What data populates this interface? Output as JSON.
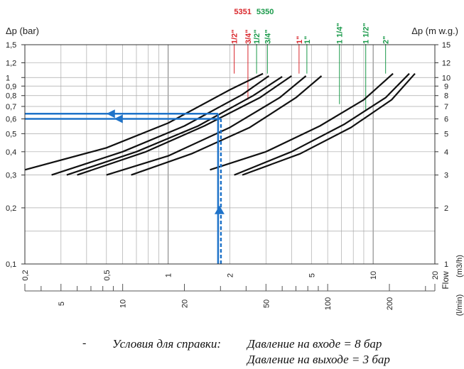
{
  "chart_data": {
    "type": "line",
    "x_scale": "log",
    "y_scale": "log",
    "xlim": [
      0.2,
      20
    ],
    "ylim": [
      0.1,
      1.5
    ],
    "grid": true,
    "ylabel_left": "Δp (bar)",
    "ylabel_right": "Δp (m w.g.)",
    "xlabel_unit_top": "(m3/h)",
    "xlabel_unit_bottom": "(l/min)",
    "flow_label": "Flow",
    "left_ticks": [
      "0,1",
      "0,2",
      "0,3",
      "0,4",
      "0,5",
      "0,6",
      "0,7",
      "0,8",
      "0,9",
      "1",
      "1,2",
      "1,5"
    ],
    "left_tick_values": [
      0.1,
      0.2,
      0.3,
      0.4,
      0.5,
      0.6,
      0.7,
      0.8,
      0.9,
      1.0,
      1.2,
      1.5
    ],
    "right_ticks": [
      "1",
      "2",
      "3",
      "4",
      "5",
      "6",
      "7",
      "8",
      "9",
      "10",
      "12",
      "15"
    ],
    "right_tick_values": [
      0.1,
      0.2,
      0.3,
      0.4,
      0.5,
      0.6,
      0.7,
      0.8,
      0.9,
      1.0,
      1.2,
      1.5
    ],
    "x_ticks_m3h": [
      "0,2",
      "0,5",
      "1",
      "2",
      "5",
      "10",
      "20"
    ],
    "x_tick_values_m3h": [
      0.2,
      0.5,
      1,
      2,
      5,
      10,
      20
    ],
    "x_ticks_lmin": [
      "5",
      "10",
      "20",
      "50",
      "100",
      "200"
    ],
    "x_tick_values_lmin": [
      5,
      10,
      20,
      50,
      100,
      200
    ],
    "groups": [
      {
        "name": "5351",
        "color": "#d9262b"
      },
      {
        "name": "5350",
        "color": "#1a9a4a"
      }
    ],
    "size_labels": [
      {
        "text": "1/2\"",
        "group": "5351",
        "x": 2.1,
        "y_end": 1.05
      },
      {
        "text": "3/4\"",
        "group": "5351",
        "x": 2.45,
        "y_end": 0.76
      },
      {
        "text": "1/2\"",
        "group": "5350",
        "x": 2.7,
        "y_end": 1.05
      },
      {
        "text": "3/4\"",
        "group": "5350",
        "x": 3.05,
        "y_end": 1.05
      },
      {
        "text": "1\"",
        "group": "5351",
        "x": 4.35,
        "y_end": 1.05
      },
      {
        "text": "1\"",
        "group": "5350",
        "x": 4.75,
        "y_end": 1.05
      },
      {
        "text": "1 1/4\"",
        "group": "5350",
        "x": 6.85,
        "y_end": 0.72
      },
      {
        "text": "1 1/2\"",
        "group": "5350",
        "x": 9.2,
        "y_end": 0.66
      },
      {
        "text": "2\"",
        "group": "5350",
        "x": 11.5,
        "y_end": 1.05
      }
    ],
    "series": [
      {
        "x": [
          0.2,
          0.5,
          1,
          2,
          2.9
        ],
        "y": [
          0.32,
          0.42,
          0.57,
          0.86,
          1.05
        ]
      },
      {
        "x": [
          0.27,
          0.6,
          1.2,
          2.3,
          3.1
        ],
        "y": [
          0.3,
          0.4,
          0.55,
          0.81,
          1.02
        ]
      },
      {
        "x": [
          0.32,
          0.7,
          1.4,
          2.6,
          3.6
        ],
        "y": [
          0.3,
          0.4,
          0.55,
          0.8,
          1.01
        ]
      },
      {
        "x": [
          0.36,
          0.78,
          1.5,
          2.8,
          4.0
        ],
        "y": [
          0.3,
          0.4,
          0.55,
          0.78,
          1.02
        ]
      },
      {
        "x": [
          0.5,
          1.0,
          2.0,
          3.5,
          4.7
        ],
        "y": [
          0.3,
          0.38,
          0.54,
          0.78,
          1.02
        ]
      },
      {
        "x": [
          0.66,
          1.3,
          2.5,
          4.2,
          5.6
        ],
        "y": [
          0.3,
          0.39,
          0.54,
          0.78,
          1.02
        ]
      },
      {
        "x": [
          1.6,
          3.0,
          5.5,
          9.0,
          12.5
        ],
        "y": [
          0.32,
          0.4,
          0.55,
          0.76,
          1.05
        ]
      },
      {
        "x": [
          2.1,
          4.0,
          7.2,
          11.5,
          15.0
        ],
        "y": [
          0.3,
          0.4,
          0.56,
          0.78,
          1.05
        ]
      },
      {
        "x": [
          2.3,
          4.4,
          7.8,
          12.3,
          16.0
        ],
        "y": [
          0.3,
          0.39,
          0.54,
          0.76,
          1.05
        ]
      }
    ],
    "example_reading": {
      "flow": 1.78,
      "dp_upper": 0.64,
      "dp_lower": 0.6
    }
  },
  "notes": {
    "dash": "-",
    "label": "Условия для справки:",
    "inlet": "Давление на входе = 8 бар",
    "outlet": "Давление на выходе = 3 бар"
  }
}
